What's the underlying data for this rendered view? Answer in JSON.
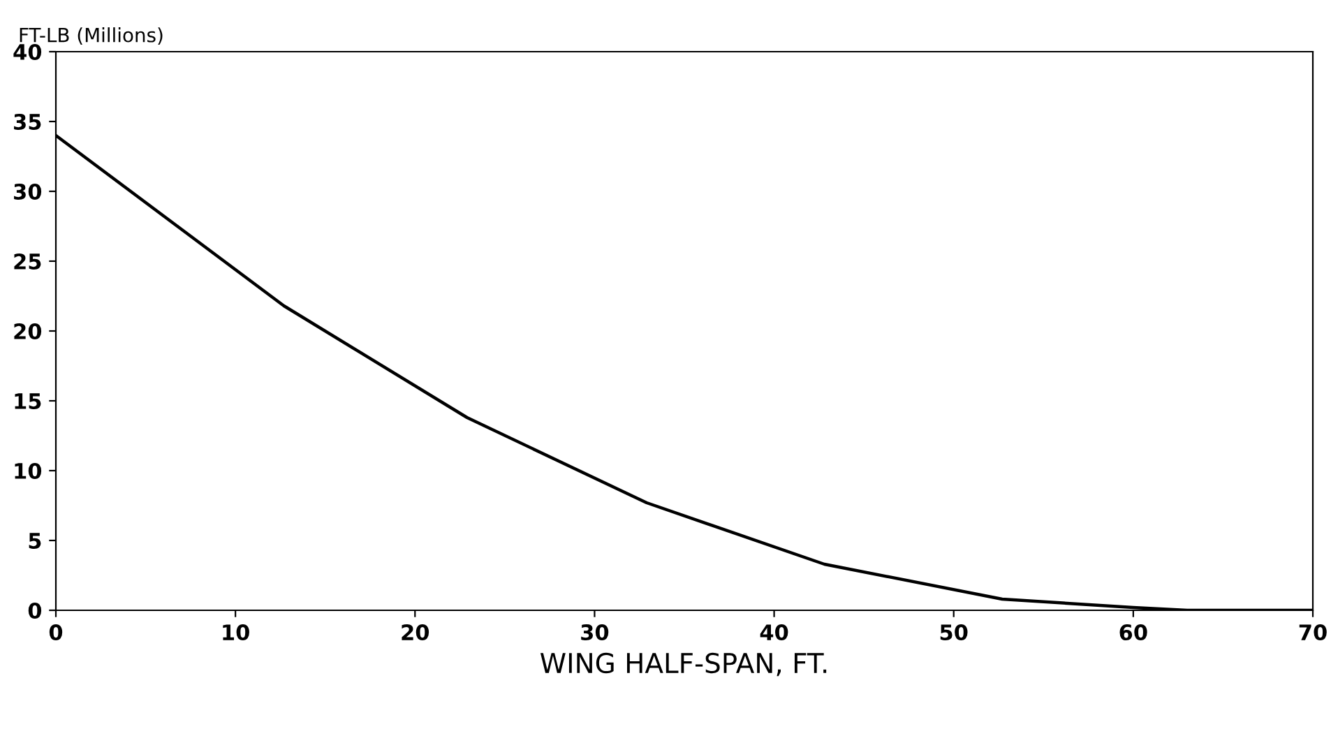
{
  "chart_data": {
    "type": "line",
    "xlabel": "WING HALF-SPAN, FT.",
    "ylabel": "FT-LB (Millions)",
    "series": [
      {
        "color": "#000000",
        "x": [
          0,
          12.7,
          22.9,
          32.9,
          42.8,
          52.7,
          60,
          63,
          70
        ],
        "values": [
          34,
          21.8,
          13.8,
          7.7,
          3.3,
          0.8,
          0.2,
          0,
          0
        ]
      }
    ],
    "xlim": [
      0,
      70
    ],
    "xticks": [
      0,
      10,
      20,
      30,
      40,
      50,
      60,
      70
    ],
    "ylim": [
      0,
      40
    ],
    "yticks": [
      0,
      5,
      10,
      15,
      20,
      25,
      30,
      35,
      40
    ],
    "grid": false,
    "legend": false,
    "marker": "none",
    "line_style": "solid"
  }
}
